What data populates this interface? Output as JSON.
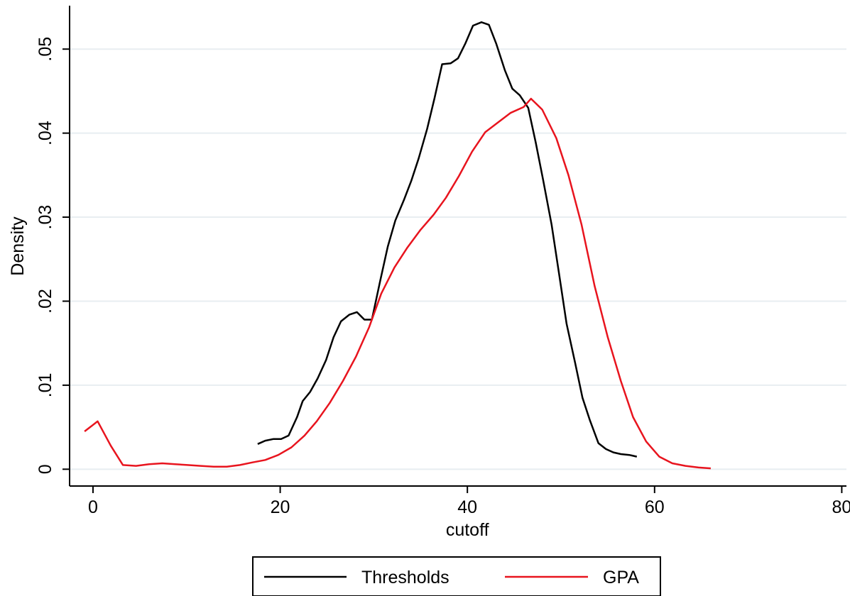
{
  "chart_data": {
    "type": "line",
    "title": "",
    "xlabel": "cutoff",
    "ylabel": "Density",
    "xlim": [
      -2.5,
      80.5
    ],
    "ylim": [
      -0.002,
      0.055
    ],
    "xticks": [
      0,
      20,
      40,
      60,
      80
    ],
    "xtick_labels": [
      "0",
      "20",
      "40",
      "60",
      "80"
    ],
    "yticks": [
      0,
      0.01,
      0.02,
      0.03,
      0.04,
      0.05
    ],
    "ytick_labels": [
      "0",
      ".01",
      ".02",
      ".03",
      ".04",
      ".05"
    ],
    "grid": true,
    "legend_position": "bottom",
    "series": [
      {
        "name": "Thresholds",
        "color": "#000000",
        "points": [
          [
            17.6,
            0.003
          ],
          [
            18.4,
            0.0034
          ],
          [
            19.3,
            0.0036
          ],
          [
            20.1,
            0.0036
          ],
          [
            20.9,
            0.004
          ],
          [
            21.8,
            0.0062
          ],
          [
            22.4,
            0.0081
          ],
          [
            23.2,
            0.0092
          ],
          [
            24.0,
            0.0108
          ],
          [
            24.9,
            0.013
          ],
          [
            25.7,
            0.0157
          ],
          [
            26.5,
            0.0176
          ],
          [
            27.4,
            0.0184
          ],
          [
            28.2,
            0.0187
          ],
          [
            29.0,
            0.0178
          ],
          [
            29.8,
            0.0178
          ],
          [
            30.7,
            0.0225
          ],
          [
            31.5,
            0.0265
          ],
          [
            32.3,
            0.0296
          ],
          [
            33.2,
            0.032
          ],
          [
            34.0,
            0.0343
          ],
          [
            34.8,
            0.037
          ],
          [
            35.7,
            0.0405
          ],
          [
            36.5,
            0.0442
          ],
          [
            37.3,
            0.0482
          ],
          [
            38.2,
            0.0483
          ],
          [
            39.0,
            0.0489
          ],
          [
            39.8,
            0.0507
          ],
          [
            40.6,
            0.0528
          ],
          [
            41.5,
            0.0532
          ],
          [
            42.3,
            0.0529
          ],
          [
            43.1,
            0.0506
          ],
          [
            44.0,
            0.0475
          ],
          [
            44.8,
            0.0453
          ],
          [
            45.6,
            0.0445
          ],
          [
            46.5,
            0.043
          ],
          [
            47.3,
            0.0389
          ],
          [
            48.1,
            0.0344
          ],
          [
            49.0,
            0.0291
          ],
          [
            49.8,
            0.0232
          ],
          [
            50.6,
            0.0173
          ],
          [
            51.5,
            0.0127
          ],
          [
            52.3,
            0.0085
          ],
          [
            53.1,
            0.0058
          ],
          [
            54.0,
            0.0031
          ],
          [
            54.8,
            0.0024
          ],
          [
            55.6,
            0.002
          ],
          [
            56.4,
            0.0018
          ],
          [
            57.3,
            0.0017
          ],
          [
            58.1,
            0.0015
          ]
        ]
      },
      {
        "name": "GPA",
        "color": "#e8141e",
        "points": [
          [
            -0.9,
            0.0045
          ],
          [
            0.5,
            0.0057
          ],
          [
            1.9,
            0.0028
          ],
          [
            3.2,
            0.0005
          ],
          [
            4.6,
            0.0004
          ],
          [
            6.0,
            0.0006
          ],
          [
            7.4,
            0.0007
          ],
          [
            8.8,
            0.0006
          ],
          [
            10.1,
            0.0005
          ],
          [
            11.5,
            0.0004
          ],
          [
            12.9,
            0.0003
          ],
          [
            14.3,
            0.0003
          ],
          [
            15.7,
            0.0005
          ],
          [
            17.0,
            0.0008
          ],
          [
            18.4,
            0.0011
          ],
          [
            19.8,
            0.0017
          ],
          [
            21.2,
            0.0026
          ],
          [
            22.6,
            0.004
          ],
          [
            23.9,
            0.0057
          ],
          [
            25.3,
            0.0079
          ],
          [
            26.7,
            0.0105
          ],
          [
            28.1,
            0.0134
          ],
          [
            29.5,
            0.0169
          ],
          [
            30.8,
            0.0209
          ],
          [
            32.2,
            0.024
          ],
          [
            33.6,
            0.0264
          ],
          [
            35.0,
            0.0285
          ],
          [
            36.4,
            0.0303
          ],
          [
            37.7,
            0.0323
          ],
          [
            39.1,
            0.0349
          ],
          [
            40.5,
            0.0378
          ],
          [
            41.9,
            0.0401
          ],
          [
            43.3,
            0.0413
          ],
          [
            44.6,
            0.0424
          ],
          [
            46.0,
            0.0431
          ],
          [
            46.8,
            0.0441
          ],
          [
            48.0,
            0.0428
          ],
          [
            49.5,
            0.0394
          ],
          [
            50.8,
            0.035
          ],
          [
            52.2,
            0.0291
          ],
          [
            53.6,
            0.0218
          ],
          [
            55.0,
            0.0157
          ],
          [
            56.4,
            0.0105
          ],
          [
            57.7,
            0.0062
          ],
          [
            59.1,
            0.0033
          ],
          [
            60.5,
            0.0015
          ],
          [
            61.9,
            0.0007
          ],
          [
            63.3,
            0.0004
          ],
          [
            64.7,
            0.0002
          ],
          [
            66.0,
            0.0001
          ]
        ]
      }
    ]
  }
}
